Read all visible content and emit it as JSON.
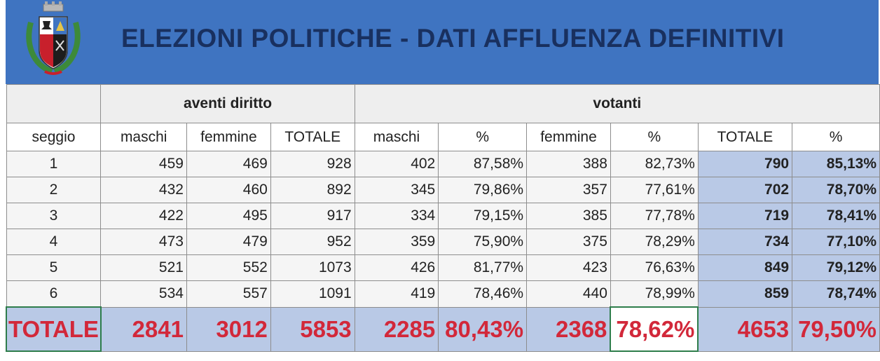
{
  "header": {
    "title": "ELEZIONI POLITICHE  - DATI AFFLUENZA DEFINITIVI",
    "bg_color": "#3f74c1",
    "title_color": "#19305f",
    "crest_icon": "municipal-coat-of-arms-icon"
  },
  "table": {
    "group_headers": [
      "",
      "aventi diritto",
      "votanti"
    ],
    "columns": [
      "seggio",
      "maschi",
      "femmine",
      "TOTALE",
      "maschi",
      "%",
      "femmine",
      "%",
      "TOTALE",
      "%"
    ],
    "rows": [
      [
        "1",
        "459",
        "469",
        "928",
        "402",
        "87,58%",
        "388",
        "82,73%",
        "790",
        "85,13%"
      ],
      [
        "2",
        "432",
        "460",
        "892",
        "345",
        "79,86%",
        "357",
        "77,61%",
        "702",
        "78,70%"
      ],
      [
        "3",
        "422",
        "495",
        "917",
        "334",
        "79,15%",
        "385",
        "77,78%",
        "719",
        "78,41%"
      ],
      [
        "4",
        "473",
        "479",
        "952",
        "359",
        "75,90%",
        "375",
        "78,29%",
        "734",
        "77,10%"
      ],
      [
        "5",
        "521",
        "552",
        "1073",
        "426",
        "81,77%",
        "423",
        "76,63%",
        "849",
        "79,12%"
      ],
      [
        "6",
        "534",
        "557",
        "1091",
        "419",
        "78,46%",
        "440",
        "78,99%",
        "859",
        "78,74%"
      ]
    ],
    "total_row": [
      "TOTALE",
      "2841",
      "3012",
      "5853",
      "2285",
      "80,43%",
      "2368",
      "78,62%",
      "4653",
      "79,50%"
    ],
    "total_color": "#d2283a",
    "highlight_color": "#b9c9e6"
  }
}
